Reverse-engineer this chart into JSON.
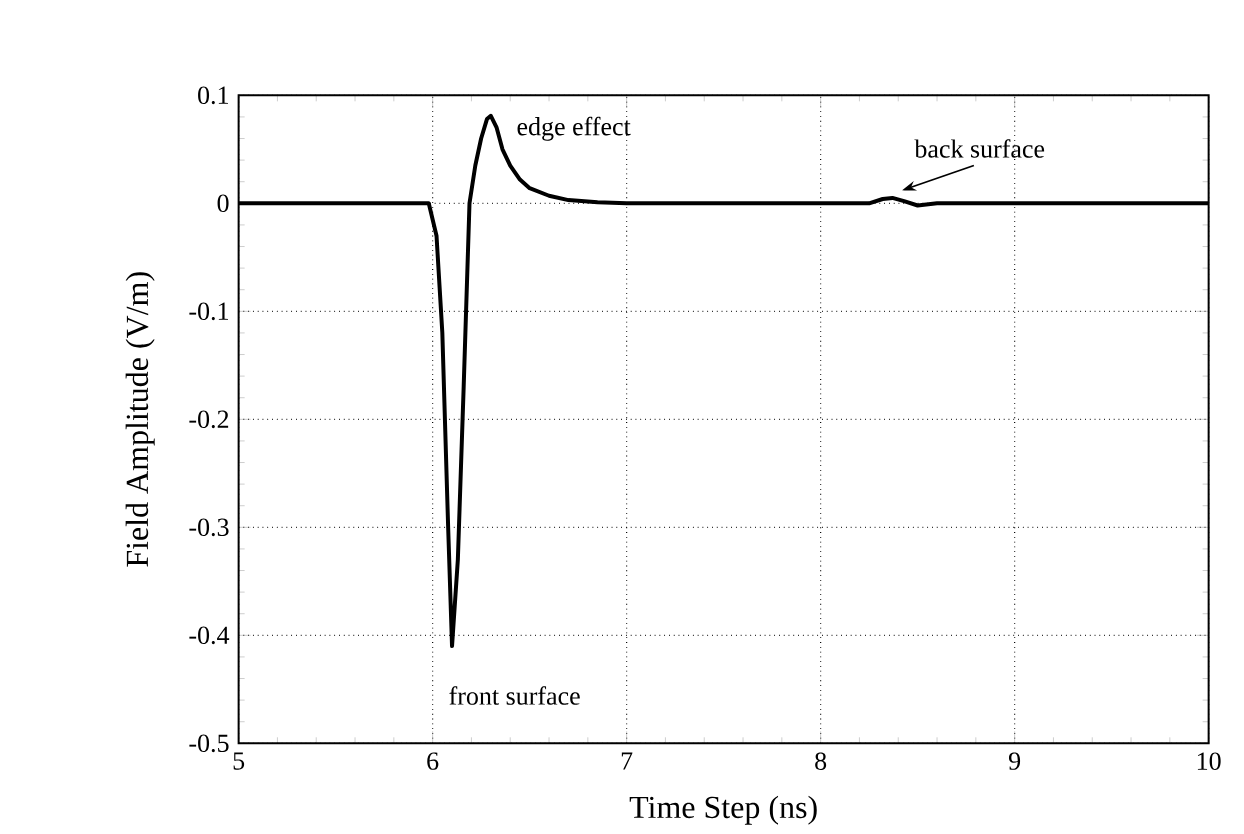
{
  "chart_data": {
    "type": "line",
    "xlabel": "Time Step (ns)",
    "ylabel": "Field Amplitude (V/m)",
    "xlim": [
      5,
      10
    ],
    "ylim": [
      -0.5,
      0.1
    ],
    "xticks": [
      5,
      6,
      7,
      8,
      9,
      10
    ],
    "yticks": [
      -0.5,
      -0.4,
      -0.3,
      -0.2,
      -0.1,
      0,
      0.1
    ],
    "grid": true,
    "line_style": "solid",
    "color": "#000000",
    "x": [
      5,
      5.5,
      5.9,
      5.98,
      6.02,
      6.05,
      6.08,
      6.1,
      6.13,
      6.16,
      6.19,
      6.22,
      6.25,
      6.28,
      6.3,
      6.33,
      6.36,
      6.4,
      6.45,
      6.5,
      6.6,
      6.7,
      6.85,
      7,
      7.5,
      8,
      8.25,
      8.32,
      8.37,
      8.43,
      8.5,
      8.6,
      9,
      9.5,
      10
    ],
    "values": [
      0,
      0,
      0,
      0,
      -0.03,
      -0.12,
      -0.3,
      -0.41,
      -0.33,
      -0.17,
      0,
      0.035,
      0.06,
      0.078,
      0.081,
      0.07,
      0.05,
      0.035,
      0.022,
      0.014,
      0.007,
      0.003,
      0.001,
      0,
      0,
      0,
      0,
      0.004,
      0.005,
      0.002,
      -0.002,
      0,
      0,
      0,
      0
    ],
    "annotations": [
      {
        "text": "edge effect",
        "x": 6.3,
        "y": 0.081
      },
      {
        "text": "front surface",
        "x": 6.1,
        "y": -0.41
      },
      {
        "text": "back surface",
        "x": 8.37,
        "y": 0.005
      }
    ]
  }
}
